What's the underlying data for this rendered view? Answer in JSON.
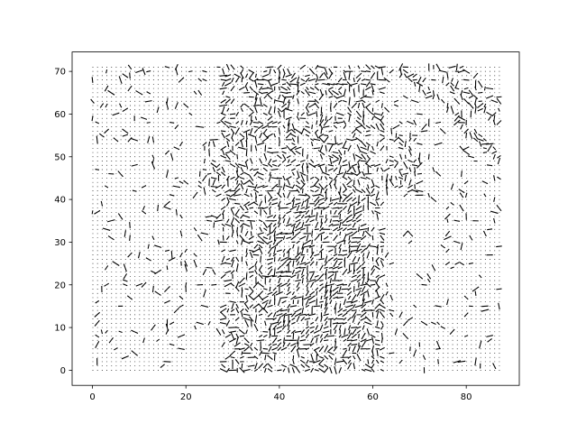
{
  "chart_data": {
    "type": "quiver",
    "title": "",
    "xlabel": "",
    "ylabel": "",
    "xlim": [
      -4.35,
      91.35
    ],
    "ylim": [
      -3.55,
      74.55
    ],
    "x_ticks": [
      0,
      20,
      40,
      60,
      80
    ],
    "y_ticks": [
      0,
      10,
      20,
      30,
      40,
      50,
      60,
      70
    ],
    "x_tick_labels": [
      "0",
      "20",
      "40",
      "60",
      "80"
    ],
    "y_tick_labels": [
      "0",
      "10",
      "20",
      "30",
      "40",
      "50",
      "60",
      "70"
    ],
    "grid": {
      "x": [
        0,
        87
      ],
      "y": [
        0,
        71
      ]
    },
    "arrow_color": "#000000",
    "dense_regions": [
      {
        "x": [
          28,
          62
        ],
        "y": [
          0,
          71
        ],
        "density": 0.55
      },
      {
        "x": [
          38,
          58
        ],
        "y": [
          5,
          40
        ],
        "density": 0.75
      },
      {
        "x": [
          24,
          70
        ],
        "y": [
          42,
          55
        ],
        "density": 0.45
      }
    ],
    "diagonal_streaks": [
      {
        "from": [
          66,
          71
        ],
        "to": [
          87,
          50
        ]
      },
      {
        "from": [
          73,
          71
        ],
        "to": [
          87,
          58
        ]
      },
      {
        "from": [
          78,
          71
        ],
        "to": [
          87,
          63
        ]
      }
    ],
    "background_density": 0.09,
    "grid_on": false,
    "legend": "none"
  }
}
